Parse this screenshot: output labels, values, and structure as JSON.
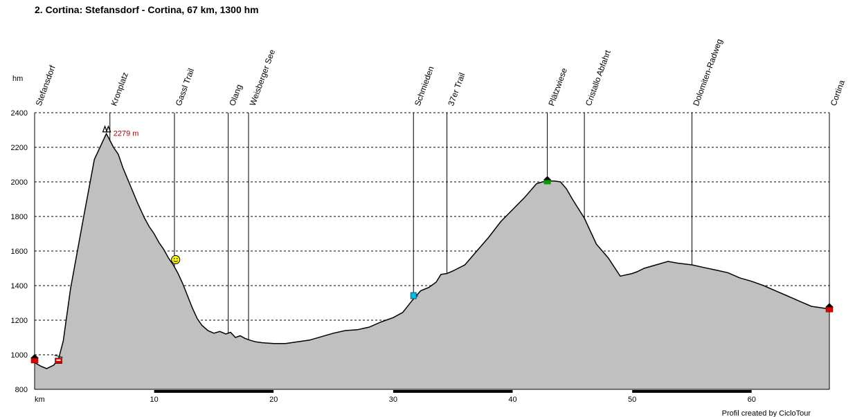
{
  "title": "2. Cortina: Stefansdorf - Cortina, 67 km, 1300 hm",
  "credit": "Profil created by CicloTour",
  "chart_data": {
    "type": "area",
    "ylabel": "hm",
    "xlabel": "km",
    "xlim": [
      0,
      66.5
    ],
    "ylim": [
      800,
      2400
    ],
    "xticks": [
      10,
      20,
      30,
      40,
      50,
      60
    ],
    "yticks": [
      800,
      1000,
      1200,
      1400,
      1600,
      1800,
      2000,
      2200,
      2400
    ],
    "grid": true,
    "peak_label": "2279 m",
    "colors": {
      "fill": "#c0c0c0",
      "line": "#000000",
      "grid": "#000000"
    },
    "profile": {
      "x": [
        0,
        0.5,
        1.0,
        1.6,
        2.0,
        2.4,
        3.0,
        4.0,
        5.0,
        6.0,
        6.3,
        6.6,
        7.0,
        7.4,
        8.0,
        8.6,
        9.2,
        9.6,
        10.0,
        10.4,
        10.8,
        11.2,
        11.6,
        12.0,
        12.4,
        12.8,
        13.2,
        13.6,
        14.0,
        14.5,
        15.0,
        15.5,
        16.0,
        16.4,
        16.8,
        17.2,
        17.6,
        18.0,
        18.5,
        19.0,
        20.0,
        21.0,
        22.0,
        23.0,
        24.0,
        25.0,
        26.0,
        27.0,
        28.0,
        29.0,
        30.0,
        30.8,
        31.6,
        32.3,
        33.0,
        33.6,
        34.0,
        34.5,
        35.0,
        36.0,
        37.0,
        38.0,
        39.0,
        40.0,
        41.0,
        42.0,
        42.5,
        43.0,
        43.5,
        44.0,
        44.5,
        45.0,
        46.0,
        47.0,
        48.0,
        49.0,
        50.0,
        50.4,
        51.0,
        52.0,
        53.0,
        53.8,
        55.0,
        56.0,
        57.0,
        58.0,
        59.0,
        60.0,
        61.0,
        62.0,
        63.0,
        64.0,
        65.0,
        66.5
      ],
      "y": [
        955,
        935,
        920,
        940,
        975,
        1080,
        1380,
        1760,
        2130,
        2279,
        2240,
        2200,
        2160,
        2080,
        1980,
        1880,
        1790,
        1740,
        1700,
        1650,
        1610,
        1560,
        1520,
        1470,
        1410,
        1340,
        1270,
        1210,
        1170,
        1140,
        1125,
        1135,
        1120,
        1130,
        1100,
        1110,
        1095,
        1085,
        1075,
        1070,
        1065,
        1065,
        1075,
        1085,
        1105,
        1125,
        1140,
        1145,
        1160,
        1190,
        1215,
        1245,
        1315,
        1370,
        1390,
        1420,
        1465,
        1470,
        1485,
        1520,
        1600,
        1680,
        1770,
        1840,
        1910,
        1990,
        2000,
        2005,
        2005,
        2000,
        1960,
        1900,
        1790,
        1640,
        1560,
        1455,
        1470,
        1480,
        1500,
        1520,
        1540,
        1530,
        1520,
        1505,
        1490,
        1475,
        1445,
        1425,
        1400,
        1370,
        1340,
        1310,
        1280,
        1265
      ]
    },
    "waypoints": [
      {
        "name": "Stefansdorf",
        "km": 0
      },
      {
        "name": "Kronplatz",
        "km": 6.3
      },
      {
        "name": "Gassl Trail",
        "km": 11.7
      },
      {
        "name": "Olang",
        "km": 16.2
      },
      {
        "name": "Weisberger See",
        "km": 17.9
      },
      {
        "name": "Schmieden",
        "km": 31.7
      },
      {
        "name": "37er Trail",
        "km": 34.5
      },
      {
        "name": "Plätzwiese",
        "km": 42.9
      },
      {
        "name": "Cristallo Abfahrt",
        "km": 46.0
      },
      {
        "name": "Dolomiten-Radweg",
        "km": 55.0
      },
      {
        "name": "Cortina",
        "km": 66.5
      }
    ],
    "markers": [
      {
        "name": "start-house-marker",
        "km": 0,
        "hm": 980,
        "color": "#e00000"
      },
      {
        "name": "cable-car-marker",
        "km": 2.0,
        "hm": 965,
        "color": "#e00000"
      },
      {
        "name": "summit-marker",
        "km": 6.0,
        "hm": 2305,
        "color": "#000000"
      },
      {
        "name": "smiley-marker",
        "km": 11.8,
        "hm": 1550,
        "color": "#ffff00"
      },
      {
        "name": "cup-marker",
        "km": 31.7,
        "hm": 1340,
        "color": "#00c0e0"
      },
      {
        "name": "hut-marker",
        "km": 42.9,
        "hm": 2010,
        "color": "#00a000"
      },
      {
        "name": "finish-house-marker",
        "km": 66.5,
        "hm": 1275,
        "color": "#e00000"
      }
    ]
  }
}
